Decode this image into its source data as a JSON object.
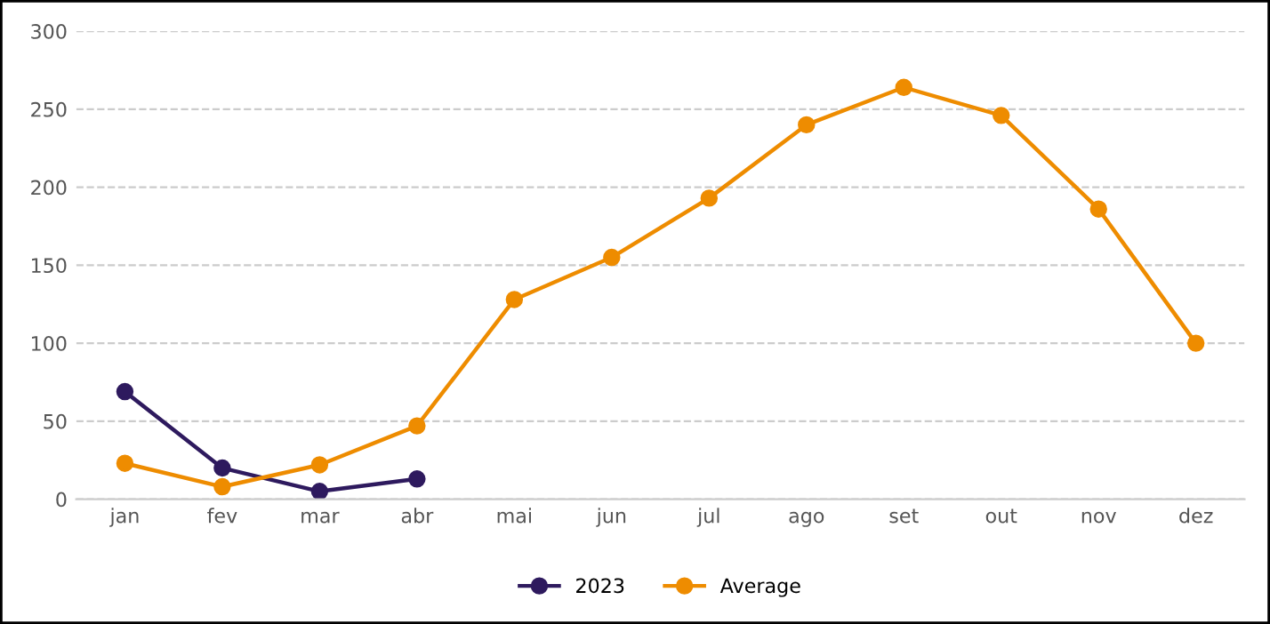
{
  "chart_data": {
    "type": "line",
    "categories": [
      "jan",
      "fev",
      "mar",
      "abr",
      "mai",
      "jun",
      "jul",
      "ago",
      "set",
      "out",
      "nov",
      "dez"
    ],
    "series": [
      {
        "name": "2023",
        "color": "#2e1a5e",
        "values": [
          69,
          20,
          5,
          13,
          null,
          null,
          null,
          null,
          null,
          null,
          null,
          null
        ]
      },
      {
        "name": "Average",
        "color": "#ee8c00",
        "values": [
          23,
          8,
          22,
          47,
          128,
          155,
          193,
          240,
          264,
          246,
          186,
          100
        ]
      }
    ],
    "ylim": [
      0,
      300
    ],
    "yticks": [
      0,
      50,
      100,
      150,
      200,
      250,
      300
    ],
    "grid": "y",
    "legend": "bottom",
    "marker": "circle",
    "line_style": "solid"
  }
}
